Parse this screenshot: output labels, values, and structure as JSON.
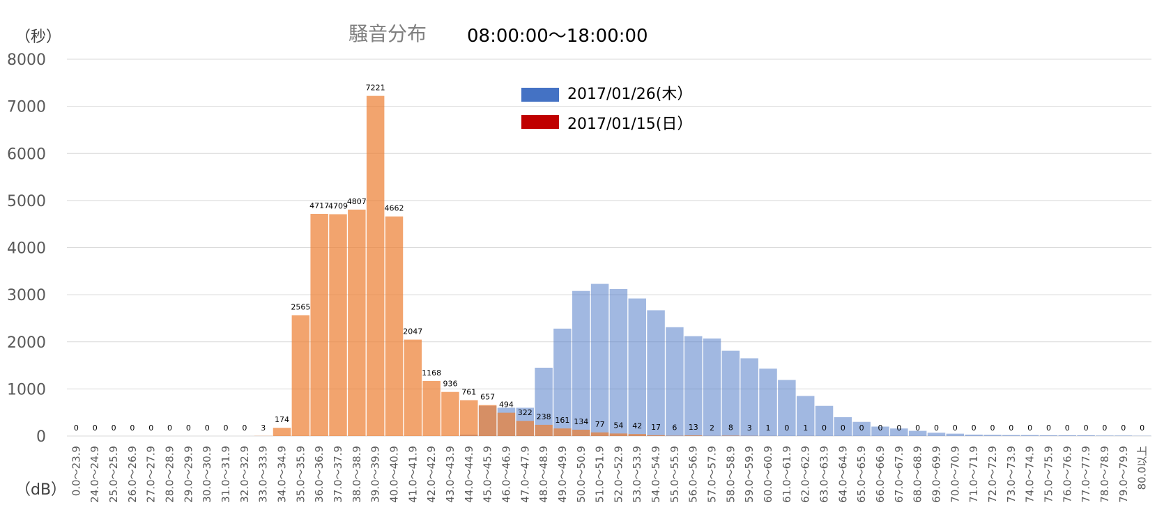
{
  "chart_data": {
    "type": "bar",
    "title": "騒音分布",
    "subtitle": "08:00:00～18:00:00",
    "ylabel": "（秒）",
    "xlabel": "（dB）",
    "ylim": [
      0,
      8000
    ],
    "yticks": [
      0,
      1000,
      2000,
      3000,
      4000,
      5000,
      6000,
      7000,
      8000
    ],
    "grid": true,
    "legend_position": "top-center",
    "categories": [
      "0.0～23.9",
      "24.0～24.9",
      "25.0～25.9",
      "26.0～26.9",
      "27.0～27.9",
      "28.0～28.9",
      "29.0～29.9",
      "30.0～30.9",
      "31.0～31.9",
      "32.0～32.9",
      "33.0～33.9",
      "34.0～34.9",
      "35.0～35.9",
      "36.0～36.9",
      "37.0～37.9",
      "38.0～38.9",
      "39.0～39.9",
      "40.0～40.9",
      "41.0～41.9",
      "42.0～42.9",
      "43.0～43.9",
      "44.0～44.9",
      "45.0～45.9",
      "46.0～46.9",
      "47.0～47.9",
      "48.0～48.9",
      "49.0～49.9",
      "50.0～50.9",
      "51.0～51.9",
      "52.0～52.9",
      "53.0～53.9",
      "54.0～54.9",
      "55.0～55.9",
      "56.0～56.9",
      "57.0～57.9",
      "58.0～58.9",
      "59.0～59.9",
      "60.0～60.9",
      "61.0～61.9",
      "62.0～62.9",
      "63.0～63.9",
      "64.0～64.9",
      "65.0～65.9",
      "66.0～66.9",
      "67.0～67.9",
      "68.0～68.9",
      "69.0～69.9",
      "70.0～70.9",
      "71.0～71.9",
      "72.0～72.9",
      "73.0～73.9",
      "74.0～74.9",
      "75.0～75.9",
      "76.0～76.9",
      "77.0～77.9",
      "78.0～78.9",
      "79.0～79.9",
      "80.0以上"
    ],
    "series": [
      {
        "name": "2017/01/26(木）",
        "color": "#4472c4",
        "values": [
          0,
          0,
          0,
          0,
          0,
          0,
          0,
          0,
          0,
          0,
          0,
          0,
          0,
          0,
          0,
          0,
          0,
          0,
          0,
          0,
          0,
          30,
          640,
          600,
          600,
          1450,
          2280,
          3080,
          3230,
          3120,
          2920,
          2670,
          2310,
          2120,
          2070,
          1810,
          1650,
          1430,
          1190,
          850,
          640,
          400,
          300,
          200,
          160,
          110,
          70,
          50,
          30,
          25,
          20,
          20,
          15,
          15,
          15,
          10,
          10,
          5
        ],
        "show_labels": false
      },
      {
        "name": "2017/01/15(日）",
        "color": "#c00000",
        "bar_color": "#f4b183",
        "values": [
          0,
          0,
          0,
          0,
          0,
          0,
          0,
          0,
          0,
          0,
          3,
          174,
          2565,
          4717,
          4709,
          4807,
          7221,
          4662,
          2047,
          1168,
          936,
          761,
          657,
          494,
          322,
          238,
          161,
          134,
          77,
          54,
          42,
          17,
          6,
          13,
          2,
          8,
          3,
          1,
          0,
          1,
          0,
          0,
          0,
          0,
          0,
          0,
          0,
          0,
          0,
          0,
          0,
          0,
          0,
          0,
          0,
          0,
          0,
          0
        ],
        "labels": [
          "0",
          "0",
          "0",
          "0",
          "0",
          "0",
          "0",
          "0",
          "0",
          "0",
          "3",
          "174",
          "2565",
          "4717",
          "4709",
          "4807",
          "7221",
          "4662",
          "2047",
          "1168",
          "936",
          "761",
          "657",
          "494",
          "322",
          "238",
          "161",
          "134",
          "77",
          "54",
          "42",
          "17",
          "6",
          "13",
          "2",
          "8",
          "3",
          "1",
          "0",
          "1",
          "0",
          "0",
          "0",
          "0",
          "0",
          "0",
          "0",
          "0",
          "0",
          "0",
          "0",
          "0",
          "0",
          "0",
          "0",
          "0",
          "0",
          "0"
        ],
        "show_labels": true
      }
    ]
  }
}
